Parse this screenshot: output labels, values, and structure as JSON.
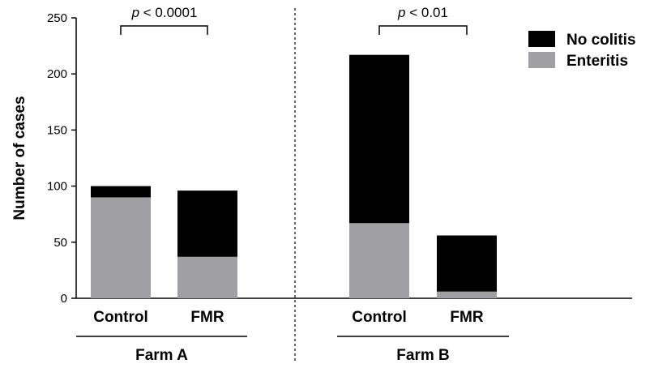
{
  "chart_data": {
    "type": "bar",
    "stacked": true,
    "ylabel": "Number of cases",
    "ylim": [
      0,
      250
    ],
    "yticks": [
      0,
      50,
      100,
      150,
      200,
      250
    ],
    "groups": [
      {
        "name": "Farm A",
        "categories": [
          "Control",
          "FMR"
        ]
      },
      {
        "name": "Farm B",
        "categories": [
          "Control",
          "FMR"
        ]
      }
    ],
    "series": [
      {
        "name": "Enteritis",
        "color": "#a0a0a4",
        "values": [
          90,
          37,
          67,
          6
        ]
      },
      {
        "name": "No colitis",
        "color": "#000000",
        "values": [
          10,
          59,
          150,
          50
        ]
      }
    ],
    "legend_position": "top-right",
    "annotations": [
      {
        "group": "Farm A",
        "label_prefix": "p",
        "label_rest": " < 0.0001"
      },
      {
        "group": "Farm B",
        "label_prefix": "p",
        "label_rest": " < 0.01"
      }
    ]
  }
}
